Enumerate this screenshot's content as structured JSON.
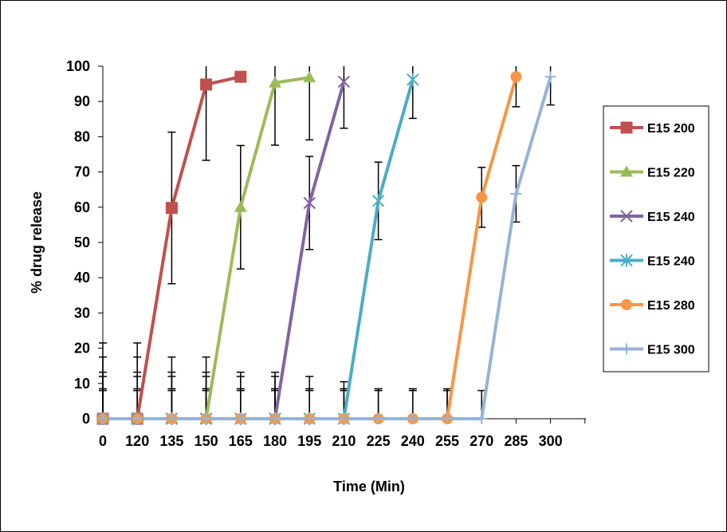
{
  "chart_data": {
    "type": "line",
    "xlabel": "Time (Min)",
    "ylabel": "% drug release",
    "categories": [
      "0",
      "120",
      "135",
      "150",
      "165",
      "180",
      "195",
      "210",
      "225",
      "240",
      "255",
      "270",
      "285",
      "300"
    ],
    "ylim": [
      0,
      100
    ],
    "yticks": [
      0,
      10,
      20,
      30,
      40,
      50,
      60,
      70,
      80,
      90,
      100
    ],
    "grid": false,
    "legend_position": "right",
    "series": [
      {
        "name": "E15 200",
        "color": "#C0504D",
        "marker": "square",
        "values": [
          0,
          0,
          59.8,
          94.8,
          97.0,
          null,
          null,
          null,
          null,
          null,
          null,
          null,
          null,
          null
        ],
        "errors": [
          21.5,
          21.5,
          21.5,
          21.5,
          0,
          null,
          null,
          null,
          null,
          null,
          null,
          null,
          null,
          null
        ]
      },
      {
        "name": "E15 220",
        "color": "#9BBB59",
        "marker": "triangle",
        "values": [
          0,
          0,
          0,
          0,
          60.0,
          95.3,
          96.8,
          null,
          null,
          null,
          null,
          null,
          null,
          null
        ],
        "errors": [
          17.5,
          17.5,
          17.5,
          17.5,
          17.5,
          17.7,
          17.7,
          null,
          null,
          null,
          null,
          null,
          null,
          null
        ]
      },
      {
        "name": "E15 240",
        "color": "#8064A2",
        "marker": "x",
        "values": [
          0,
          0,
          0,
          0,
          0,
          0,
          61.2,
          95.6,
          null,
          null,
          null,
          null,
          null,
          null
        ],
        "errors": [
          13.2,
          13.2,
          13.2,
          13.2,
          13.2,
          13.2,
          13.2,
          13.2,
          null,
          null,
          null,
          null,
          null,
          null
        ]
      },
      {
        "name": "E15 240",
        "color": "#4BACC6",
        "marker": "star",
        "values": [
          0,
          0,
          0,
          0,
          0,
          0,
          0,
          0,
          61.8,
          96.2,
          null,
          null,
          null,
          null
        ],
        "errors": [
          12.0,
          12.0,
          12.0,
          12.0,
          12.0,
          12.0,
          12.0,
          10.5,
          11.0,
          11.0,
          null,
          null,
          null,
          null
        ]
      },
      {
        "name": "E15 280",
        "color": "#F79646",
        "marker": "circle",
        "values": [
          0,
          0,
          0,
          0,
          0,
          0,
          0,
          0,
          0,
          0,
          0,
          62.8,
          97.0,
          null
        ],
        "errors": [
          8.5,
          8.5,
          8.5,
          8.5,
          8.5,
          8.5,
          8.5,
          8.5,
          8.5,
          8.5,
          8.5,
          8.5,
          8.5,
          null
        ]
      },
      {
        "name": "E15 300",
        "color": "#95B3D7",
        "marker": "plus",
        "values": [
          0,
          0,
          0,
          0,
          0,
          0,
          0,
          0,
          0,
          0,
          0,
          0,
          63.8,
          97.0
        ],
        "errors": [
          8.0,
          8.0,
          8.0,
          8.0,
          8.0,
          8.0,
          8.0,
          8.0,
          8.0,
          8.0,
          8.0,
          8.0,
          8.0,
          8.0
        ]
      }
    ]
  }
}
